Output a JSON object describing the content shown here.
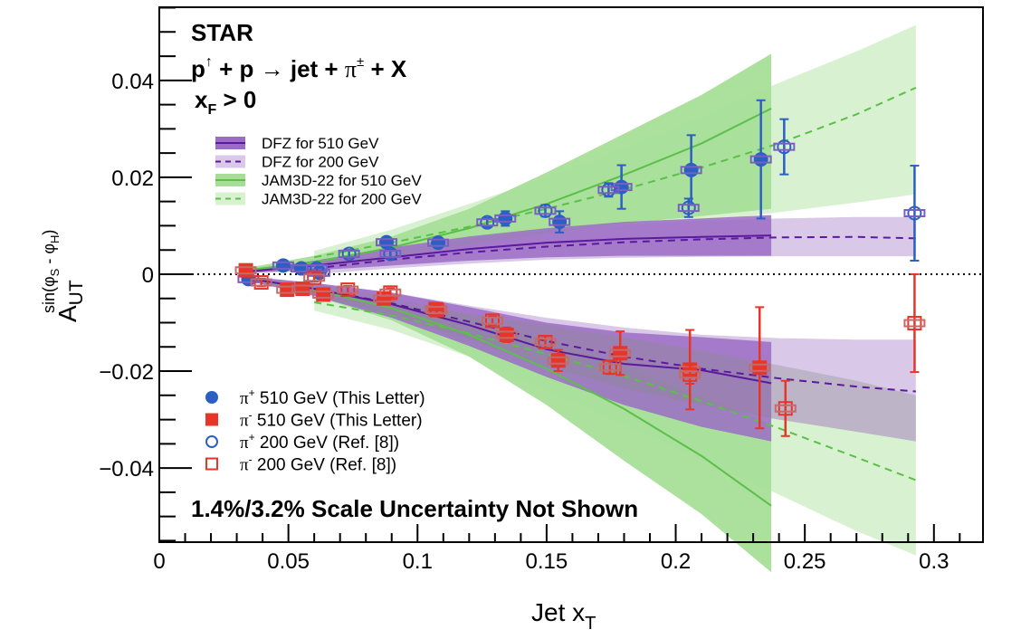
{
  "chart_data": {
    "type": "scatter",
    "title_lines": [
      "STAR",
      "p↑ + p → jet + π± + X",
      "xF > 0"
    ],
    "header": {
      "experiment": "STAR",
      "reaction": {
        "p": "p",
        "pol": "↑",
        "mid": " + p ",
        "arrow": "→",
        "jet": " jet + ",
        "pi": "π",
        "pm": "±",
        "tail": " + X"
      },
      "cut": {
        "x": "x",
        "sub": "F",
        "rest": " > 0"
      }
    },
    "annotation": "1.4%/3.2% Scale Uncertainty Not Shown",
    "xlabel": "Jet x_T",
    "xlabel_parts": {
      "main": "Jet x",
      "sub": "T"
    },
    "ylabel": "A_UT^{sin(φS - φH)}",
    "ylabel_parts": {
      "main": "A",
      "sub": "UT",
      "sup": "sin(φ",
      "sup_s": "S",
      "sup_mid": " - φ",
      "sup_h": "H",
      "sup_end": ")"
    },
    "xlim": [
      0,
      0.319
    ],
    "ylim": [
      -0.0553,
      0.0551
    ],
    "xticks": [
      {
        "value": 0,
        "label": "0"
      },
      {
        "value": 0.05,
        "label": "0.05"
      },
      {
        "value": 0.1,
        "label": "0.1"
      },
      {
        "value": 0.15,
        "label": "0.15"
      },
      {
        "value": 0.2,
        "label": "0.2"
      },
      {
        "value": 0.25,
        "label": "0.25"
      },
      {
        "value": 0.3,
        "label": "0.3"
      }
    ],
    "yticks": [
      {
        "value": 0.04,
        "label": "0.04"
      },
      {
        "value": 0.02,
        "label": "0.02"
      },
      {
        "value": 0,
        "label": "0"
      },
      {
        "value": -0.02,
        "label": "−0.02"
      },
      {
        "value": -0.04,
        "label": "−0.04"
      }
    ],
    "x_minor_step": 0.01,
    "y_minor_step": 0.005,
    "zero_line": true,
    "colors": {
      "pi_plus": "#2c5fc4",
      "pi_minus": "#e8352a",
      "sys_plus": "#7a5fc0",
      "sys_minus": "#c46a6a",
      "dfz_line": "#5b1a9e",
      "dfz510_band": "#9b6cc4",
      "dfz200_band": "#d9c8e8",
      "jam_line": "#5cbf4a",
      "jam510_band": "#a6de98",
      "jam200_band": "#d8f1d0",
      "overlap_band": "#8a8f8a"
    },
    "theory_legend": [
      {
        "label": "DFZ for 510 GeV",
        "style": "solid",
        "key": "dfz510"
      },
      {
        "label": "DFZ for 200 GeV",
        "style": "dashed",
        "key": "dfz200"
      },
      {
        "label": "JAM3D-22 for 510 GeV",
        "style": "solid",
        "key": "jam510"
      },
      {
        "label": "JAM3D-22 for 200 GeV",
        "style": "dashed",
        "key": "jam200"
      }
    ],
    "data_legend": [
      {
        "pi": "π",
        "charge": "+",
        "label": " 510 GeV (This Letter)",
        "marker": "filled-circle",
        "key": "pip510"
      },
      {
        "pi": "π",
        "charge": "-",
        "label": " 510 GeV (This Letter)",
        "marker": "filled-square",
        "key": "pim510"
      },
      {
        "pi": "π",
        "charge": "+",
        "label": " 200 GeV (Ref. [8])",
        "marker": "open-circle",
        "key": "pip200"
      },
      {
        "pi": "π",
        "charge": "-",
        "label": " 200 GeV (Ref. [8])",
        "marker": "open-square",
        "key": "pim200"
      }
    ],
    "theory": {
      "dfz510_plus": {
        "x": [
          0.033,
          0.06,
          0.09,
          0.12,
          0.15,
          0.18,
          0.21,
          0.237
        ],
        "y": [
          0.0005,
          0.0018,
          0.0035,
          0.0052,
          0.0065,
          0.0073,
          0.0077,
          0.008
        ],
        "lo": [
          0.0002,
          0.0008,
          0.0018,
          0.0028,
          0.0035,
          0.0038,
          0.0038,
          0.0038
        ],
        "hi": [
          0.0008,
          0.0028,
          0.0055,
          0.0078,
          0.0095,
          0.0108,
          0.0115,
          0.0122
        ]
      },
      "dfz200_plus": {
        "x": [
          0.06,
          0.09,
          0.12,
          0.15,
          0.18,
          0.21,
          0.24,
          0.27,
          0.293
        ],
        "y": [
          0.0012,
          0.003,
          0.0045,
          0.0057,
          0.0066,
          0.0072,
          0.0076,
          0.0077,
          0.0074
        ],
        "lo": [
          0.0,
          0.0012,
          0.0022,
          0.003,
          0.0034,
          0.0036,
          0.0037,
          0.0037,
          0.0037
        ],
        "hi": [
          0.0025,
          0.005,
          0.0072,
          0.009,
          0.0102,
          0.011,
          0.0115,
          0.0118,
          0.0118
        ]
      },
      "jam510_plus": {
        "x": [
          0.033,
          0.06,
          0.09,
          0.12,
          0.15,
          0.18,
          0.21,
          0.237
        ],
        "y": [
          0.0008,
          0.0025,
          0.0055,
          0.0095,
          0.0145,
          0.0205,
          0.027,
          0.0342
        ],
        "lo": [
          0.0005,
          0.0015,
          0.0035,
          0.006,
          0.0085,
          0.0105,
          0.012,
          0.0135
        ],
        "hi": [
          0.0012,
          0.0038,
          0.0078,
          0.0135,
          0.021,
          0.029,
          0.037,
          0.0455
        ]
      },
      "jam200_plus": {
        "x": [
          0.06,
          0.09,
          0.12,
          0.15,
          0.18,
          0.21,
          0.24,
          0.27,
          0.293
        ],
        "y": [
          0.0035,
          0.0065,
          0.0098,
          0.0135,
          0.0175,
          0.022,
          0.027,
          0.033,
          0.0385
        ],
        "lo": [
          0.0025,
          0.004,
          0.0055,
          0.0072,
          0.009,
          0.0108,
          0.0128,
          0.0148,
          0.0165
        ],
        "hi": [
          0.0048,
          0.0092,
          0.0145,
          0.02,
          0.026,
          0.0325,
          0.0395,
          0.046,
          0.0514
        ]
      },
      "dfz510_minus": {
        "x": [
          0.033,
          0.06,
          0.09,
          0.12,
          0.15,
          0.18,
          0.21,
          0.237
        ],
        "y": [
          -0.0008,
          -0.003,
          -0.0062,
          -0.0105,
          -0.0155,
          -0.0185,
          -0.0198,
          -0.0225
        ],
        "lo": [
          -0.0012,
          -0.0045,
          -0.009,
          -0.0148,
          -0.0212,
          -0.027,
          -0.0315,
          -0.0345
        ],
        "hi": [
          -0.0004,
          -0.0018,
          -0.0038,
          -0.0068,
          -0.01,
          -0.012,
          -0.013,
          -0.014
        ]
      },
      "dfz200_minus": {
        "x": [
          0.06,
          0.09,
          0.12,
          0.15,
          0.18,
          0.21,
          0.24,
          0.27,
          0.293
        ],
        "y": [
          -0.003,
          -0.006,
          -0.0098,
          -0.0138,
          -0.017,
          -0.0195,
          -0.0215,
          -0.0232,
          -0.0242
        ],
        "lo": [
          -0.0045,
          -0.0085,
          -0.0135,
          -0.019,
          -0.0235,
          -0.027,
          -0.03,
          -0.0325,
          -0.0345
        ],
        "hi": [
          -0.0018,
          -0.0038,
          -0.0065,
          -0.009,
          -0.011,
          -0.0125,
          -0.0132,
          -0.0135,
          -0.0135
        ]
      },
      "jam510_minus": {
        "x": [
          0.033,
          0.06,
          0.09,
          0.12,
          0.15,
          0.18,
          0.21,
          0.237
        ],
        "y": [
          -0.0008,
          -0.0032,
          -0.007,
          -0.0125,
          -0.0195,
          -0.0278,
          -0.0375,
          -0.0478
        ],
        "lo": [
          -0.0012,
          -0.0045,
          -0.0095,
          -0.017,
          -0.027,
          -0.0385,
          -0.0495,
          -0.0615
        ],
        "hi": [
          -0.0005,
          -0.002,
          -0.0048,
          -0.0085,
          -0.0135,
          -0.019,
          -0.025,
          -0.031
        ]
      },
      "jam200_minus": {
        "x": [
          0.06,
          0.09,
          0.12,
          0.15,
          0.18,
          0.21,
          0.24,
          0.27,
          0.293
        ],
        "y": [
          -0.0058,
          -0.0085,
          -0.0122,
          -0.0165,
          -0.021,
          -0.0262,
          -0.0318,
          -0.0378,
          -0.0425
        ],
        "lo": [
          -0.0075,
          -0.0115,
          -0.017,
          -0.024,
          -0.031,
          -0.038,
          -0.0455,
          -0.053,
          -0.058
        ],
        "hi": [
          -0.0045,
          -0.006,
          -0.0082,
          -0.0105,
          -0.013,
          -0.0158,
          -0.0188,
          -0.022,
          -0.025
        ]
      }
    },
    "series": [
      {
        "name": "π+ 510 GeV (This Letter)",
        "key": "pip510",
        "marker": "filled-circle",
        "x": [
          0.0345,
          0.048,
          0.055,
          0.062,
          0.088,
          0.108,
          0.134,
          0.155,
          0.179,
          0.206,
          0.233
        ],
        "y": [
          -0.001,
          0.0018,
          0.0012,
          0.0003,
          0.0066,
          0.0065,
          0.0115,
          0.0108,
          0.018,
          0.0215,
          0.0237
        ],
        "err": [
          0.0008,
          0.0006,
          0.0006,
          0.0007,
          0.0008,
          0.0009,
          0.0015,
          0.0022,
          0.0045,
          0.0072,
          0.0122
        ]
      },
      {
        "name": "π- 510 GeV (This Letter)",
        "key": "pim510",
        "marker": "filled-square",
        "x": [
          0.0335,
          0.0495,
          0.0555,
          0.0635,
          0.087,
          0.107,
          0.1345,
          0.1545,
          0.1785,
          0.2055,
          0.2325
        ],
        "y": [
          0.0008,
          -0.0032,
          -0.003,
          -0.0042,
          -0.005,
          -0.0072,
          -0.0125,
          -0.0178,
          -0.0163,
          -0.0197,
          -0.0193
        ],
        "err": [
          0.0008,
          0.0006,
          0.0006,
          0.0007,
          0.0008,
          0.0009,
          0.0015,
          0.0022,
          0.0045,
          0.0082,
          0.0125
        ]
      },
      {
        "name": "π+ 200 GeV (Ref. [8])",
        "key": "pip200",
        "marker": "open-circle",
        "x": [
          0.061,
          0.0735,
          0.0895,
          0.127,
          0.1495,
          0.174,
          0.205,
          0.242,
          0.2925
        ],
        "y": [
          0.0012,
          0.0042,
          0.0042,
          0.0107,
          0.0131,
          0.0174,
          0.0137,
          0.0263,
          0.0126
        ],
        "err": [
          0.0009,
          0.0008,
          0.0009,
          0.0009,
          0.0012,
          0.0014,
          0.0019,
          0.0057,
          0.0098
        ]
      },
      {
        "name": "π- 200 GeV (Ref. [8])",
        "key": "pim200",
        "marker": "open-square",
        "x": [
          0.0395,
          0.06,
          0.073,
          0.0895,
          0.1075,
          0.129,
          0.1495,
          0.1745,
          0.2055,
          0.2425,
          0.2925
        ],
        "y": [
          -0.0017,
          -0.0007,
          -0.0032,
          -0.0038,
          -0.0074,
          -0.0096,
          -0.014,
          -0.0192,
          -0.0207,
          -0.0277,
          -0.0101
        ],
        "err": [
          0.0008,
          0.0008,
          0.0008,
          0.0009,
          0.0009,
          0.0009,
          0.0012,
          0.0014,
          0.0019,
          0.0057,
          0.0101
        ]
      }
    ]
  }
}
